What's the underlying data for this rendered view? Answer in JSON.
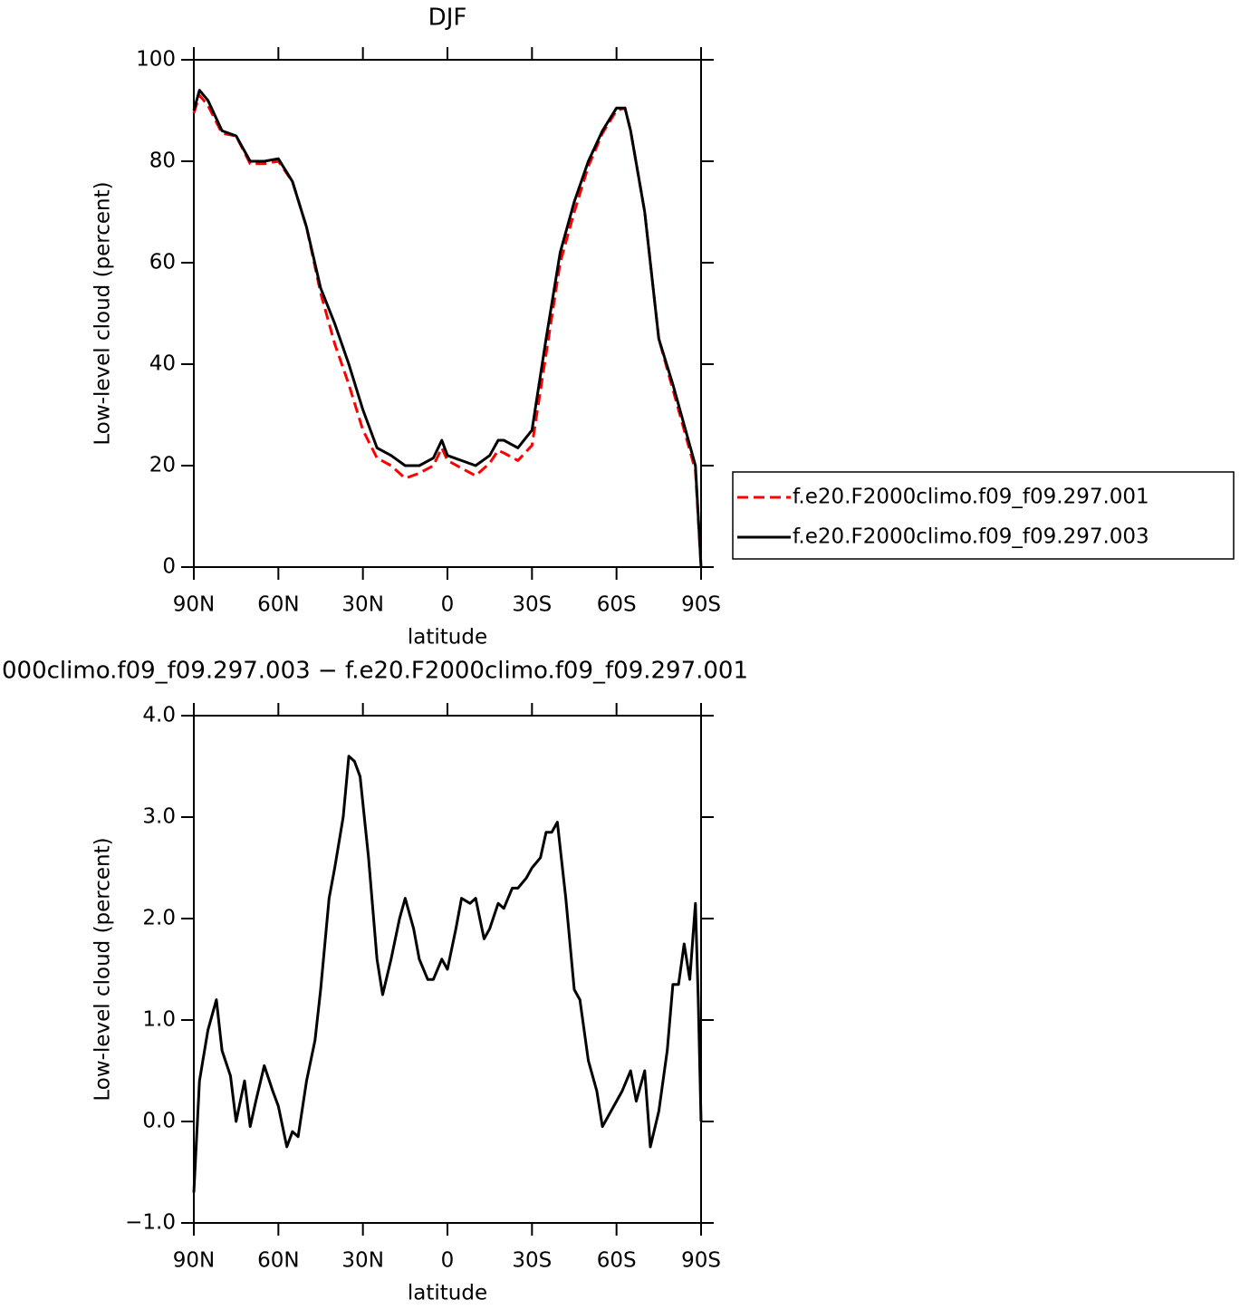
{
  "chart_data": [
    {
      "type": "line",
      "title": "DJF",
      "xlabel": "latitude",
      "ylabel": "Low-level cloud (percent)",
      "xlim": [
        90,
        -90
      ],
      "ylim": [
        0,
        100
      ],
      "xticks": [
        {
          "value": 90,
          "label": "90N"
        },
        {
          "value": 60,
          "label": "60N"
        },
        {
          "value": 30,
          "label": "30N"
        },
        0,
        {
          "value": -30,
          "label": "30S"
        },
        {
          "value": -60,
          "label": "60S"
        },
        {
          "value": -90,
          "label": "90S"
        }
      ],
      "yticks": [
        0,
        20,
        40,
        60,
        80,
        100
      ],
      "legend": "outside right",
      "x": [
        90,
        88,
        85,
        80,
        75,
        70,
        65,
        60,
        55,
        50,
        45,
        40,
        35,
        30,
        25,
        20,
        15,
        10,
        5,
        2,
        0,
        -5,
        -10,
        -15,
        -18,
        -20,
        -25,
        -30,
        -35,
        -40,
        -45,
        -50,
        -55,
        -60,
        -63,
        -65,
        -70,
        -75,
        -80,
        -85,
        -88,
        -90
      ],
      "series": [
        {
          "name": "f.e20.F2000climo.f09_f09.297.001",
          "color": "#ff0000",
          "style": "dashed",
          "values": [
            89.5,
            93,
            91,
            85.5,
            85,
            79.5,
            79.5,
            80,
            76,
            67,
            54,
            44,
            36,
            27,
            21.5,
            20,
            17.5,
            18.5,
            20,
            23.5,
            21,
            19.5,
            18,
            20.5,
            23,
            22.5,
            21,
            24,
            42,
            60,
            70,
            79,
            85.5,
            90,
            90.5,
            86,
            70,
            45,
            35,
            25,
            19,
            0
          ]
        },
        {
          "name": "f.e20.F2000climo.f09_f09.297.003",
          "color": "#000000",
          "style": "solid",
          "values": [
            90,
            94,
            92,
            86,
            85,
            80,
            80,
            80.5,
            76,
            67,
            55,
            48,
            40,
            31,
            23.5,
            22,
            20,
            20,
            21.5,
            25,
            22,
            21,
            20,
            22,
            25,
            25,
            23.5,
            27,
            45,
            62,
            72,
            80,
            86,
            90.5,
            90.5,
            86,
            70,
            45,
            36,
            26,
            20,
            0
          ]
        }
      ]
    },
    {
      "type": "line",
      "title": "000climo.f09_f09.297.003 − f.e20.F2000climo.f09_f09.297.001",
      "xlabel": "latitude",
      "ylabel": "Low-level cloud (percent)",
      "xlim": [
        90,
        -90
      ],
      "ylim": [
        -1,
        4
      ],
      "xticks": [
        {
          "value": 90,
          "label": "90N"
        },
        {
          "value": 60,
          "label": "60N"
        },
        {
          "value": 30,
          "label": "30N"
        },
        0,
        {
          "value": -30,
          "label": "30S"
        },
        {
          "value": -60,
          "label": "60S"
        },
        {
          "value": -90,
          "label": "90S"
        }
      ],
      "yticks": [
        {
          "value": -1,
          "label": "−1.0"
        },
        {
          "value": 0,
          "label": "0.0"
        },
        {
          "value": 1,
          "label": "1.0"
        },
        {
          "value": 2,
          "label": "2.0"
        },
        {
          "value": 3,
          "label": "3.0"
        },
        {
          "value": 4,
          "label": "4.0"
        }
      ],
      "x": [
        90,
        88,
        85,
        82,
        80,
        77,
        75,
        72,
        70,
        68,
        65,
        62,
        60,
        57,
        55,
        53,
        50,
        47,
        45,
        42,
        40,
        37,
        35,
        33,
        31,
        28,
        25,
        23,
        20,
        17,
        15,
        12,
        10,
        7,
        5,
        2,
        0,
        -3,
        -5,
        -8,
        -10,
        -13,
        -15,
        -18,
        -20,
        -23,
        -25,
        -28,
        -30,
        -33,
        -35,
        -37,
        -39,
        -42,
        -45,
        -47,
        -50,
        -53,
        -55,
        -58,
        -60,
        -62,
        -65,
        -67,
        -70,
        -72,
        -75,
        -78,
        -80,
        -82,
        -84,
        -86,
        -88,
        -89,
        -90
      ],
      "series": [
        {
          "color": "#000000",
          "style": "solid",
          "values": [
            -0.7,
            0.4,
            0.9,
            1.2,
            0.7,
            0.45,
            0.0,
            0.4,
            -0.05,
            0.2,
            0.55,
            0.3,
            0.15,
            -0.25,
            -0.1,
            -0.15,
            0.4,
            0.8,
            1.3,
            2.2,
            2.5,
            3.0,
            3.6,
            3.55,
            3.4,
            2.6,
            1.6,
            1.25,
            1.6,
            2.0,
            2.2,
            1.9,
            1.6,
            1.4,
            1.4,
            1.6,
            1.5,
            1.9,
            2.2,
            2.15,
            2.2,
            1.8,
            1.9,
            2.15,
            2.1,
            2.3,
            2.3,
            2.4,
            2.5,
            2.6,
            2.85,
            2.85,
            2.95,
            2.2,
            1.3,
            1.2,
            0.6,
            0.3,
            -0.05,
            0.1,
            0.2,
            0.3,
            0.5,
            0.2,
            0.5,
            -0.25,
            0.1,
            0.7,
            1.35,
            1.35,
            1.75,
            1.4,
            2.15,
            1.2,
            0.0
          ]
        }
      ]
    }
  ]
}
